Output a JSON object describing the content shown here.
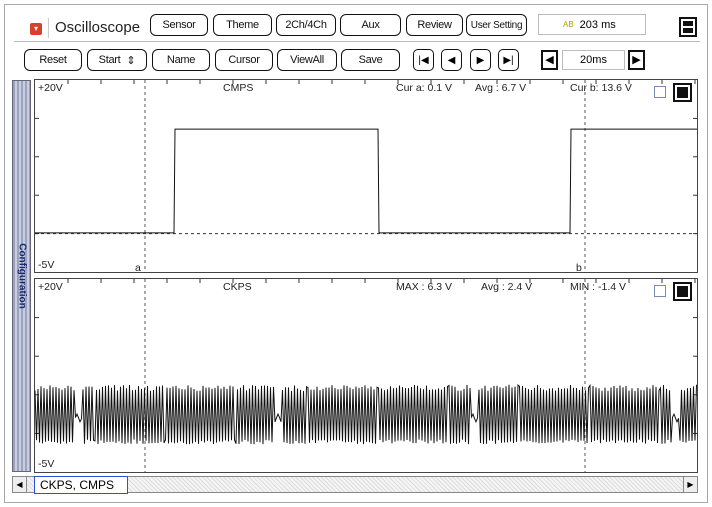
{
  "header": {
    "title": "Oscilloscope",
    "buttons": [
      "Sensor",
      "Theme",
      "2Ch/4Ch",
      "Aux",
      "Review",
      "User Setting"
    ],
    "time_display": "203 ms"
  },
  "toolbar": {
    "buttons": [
      "Reset",
      "Start",
      "Name",
      "Cursor",
      "ViewAll",
      "Save"
    ],
    "nav": [
      "first",
      "prev",
      "next",
      "last"
    ],
    "timebase": "20ms"
  },
  "sidebar": {
    "label": "Configuration"
  },
  "channels": [
    {
      "name": "CMPS",
      "top_label": "+20V",
      "bottom_label": "-5V",
      "stats": [
        "Cur a: 0.1 V",
        "Avg : 6.7 V",
        "Cur b: 13.6 V"
      ],
      "range": [
        -5,
        20
      ]
    },
    {
      "name": "CKPS",
      "top_label": "+20V",
      "bottom_label": "-5V",
      "stats": [
        "MAX : 6.3 V",
        "Avg : 2.4 V",
        "MIN : -1.4 V"
      ],
      "range": [
        -5,
        20
      ]
    }
  ],
  "cursors": {
    "a": "a",
    "b": "b"
  },
  "legend": "CKPS, CMPS",
  "colors": {
    "accent_red": "#d9402b",
    "legend_border": "#2a4fd8"
  }
}
